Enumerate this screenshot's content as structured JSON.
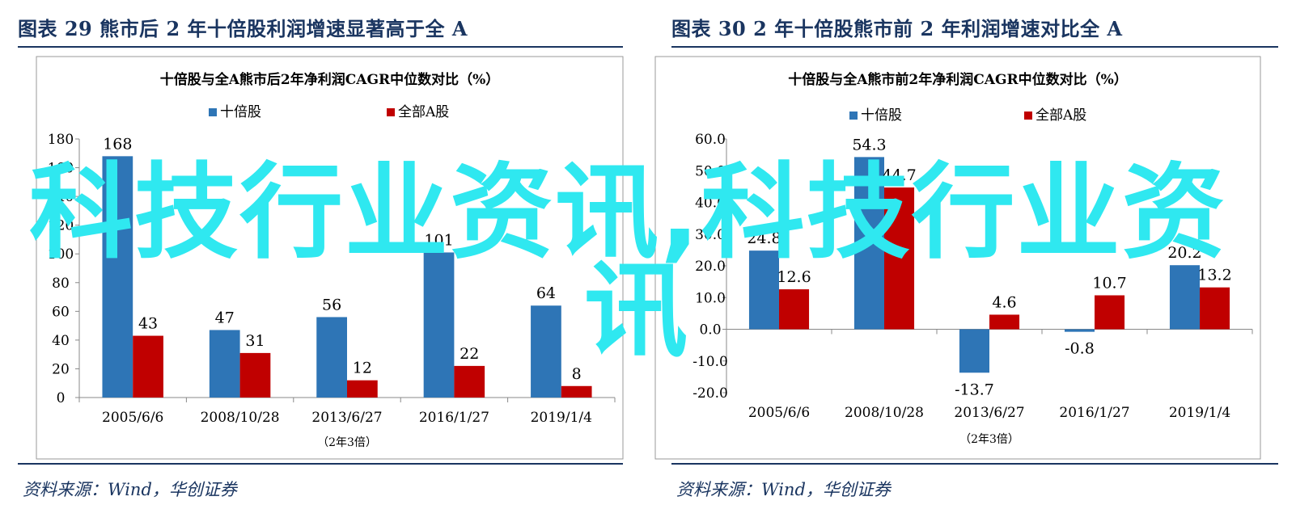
{
  "figures": [
    {
      "figure_title": "图表 29    熊市后 2 年十倍股利润增速显著高于全 A",
      "source": "资料来源：Wind，华创证券"
    },
    {
      "figure_title": "图表 30    2 年十倍股熊市前 2 年利润增速对比全 A",
      "source": "资料来源：Wind，华创证券"
    }
  ],
  "watermark": {
    "line1": "科技行业资讯,科技行业资",
    "line2": "讯",
    "color": "#2fe8f0"
  },
  "colors": {
    "series_blue": "#2e75b6",
    "series_red": "#c00000",
    "heading": "#1a3560"
  },
  "chart_data": [
    {
      "type": "bar",
      "title": "十倍股与全A熊市后2年净利润CAGR中位数对比（%）",
      "xlabel": "（2年3倍）",
      "ylabel": "",
      "categories": [
        "2005/6/6",
        "2008/10/28",
        "2013/6/27",
        "2016/1/27",
        "2019/1/4"
      ],
      "series": [
        {
          "name": "十倍股",
          "color": "#2e75b6",
          "values": [
            168,
            47,
            56,
            101,
            64
          ],
          "labels": [
            "168",
            "47",
            "56",
            "101",
            "64"
          ]
        },
        {
          "name": "全部A股",
          "color": "#c00000",
          "values": [
            43,
            31,
            12,
            22,
            8
          ],
          "labels": [
            "43",
            "31",
            "12",
            "22",
            "8"
          ]
        }
      ],
      "ylim": [
        0,
        180
      ],
      "yticks": [
        0,
        20,
        40,
        60,
        80,
        100,
        120,
        140,
        160,
        180
      ],
      "ytick_labels": [
        "0",
        "20",
        "40",
        "60",
        "80",
        "100",
        "120",
        "140",
        "160",
        "180"
      ],
      "grid": false,
      "legend": "top-center"
    },
    {
      "type": "bar",
      "title": "十倍股与全A熊市前2年净利润CAGR中位数对比（%）",
      "xlabel": "（2年3倍）",
      "ylabel": "",
      "categories": [
        "2005/6/6",
        "2008/10/28",
        "2013/6/27",
        "2016/1/27",
        "2019/1/4"
      ],
      "series": [
        {
          "name": "十倍股",
          "color": "#2e75b6",
          "values": [
            24.8,
            54.3,
            -13.7,
            -0.8,
            20.2
          ],
          "labels": [
            "24.8",
            "54.3",
            "-13.7",
            "-0.8",
            "20.2"
          ]
        },
        {
          "name": "全部A股",
          "color": "#c00000",
          "values": [
            12.6,
            44.7,
            4.6,
            10.7,
            13.2
          ],
          "labels": [
            "12.6",
            "44.7",
            "4.6",
            "10.7",
            "13.2"
          ]
        }
      ],
      "ylim": [
        -20,
        60
      ],
      "yticks": [
        -20,
        -10,
        0,
        10,
        20,
        30,
        40,
        50,
        60
      ],
      "ytick_labels": [
        "-20.0",
        "-10.0",
        "0.0",
        "10.0",
        "20.0",
        "30.0",
        "40.0",
        "50.0",
        "60.0"
      ],
      "grid": false,
      "legend": "top-center"
    }
  ]
}
